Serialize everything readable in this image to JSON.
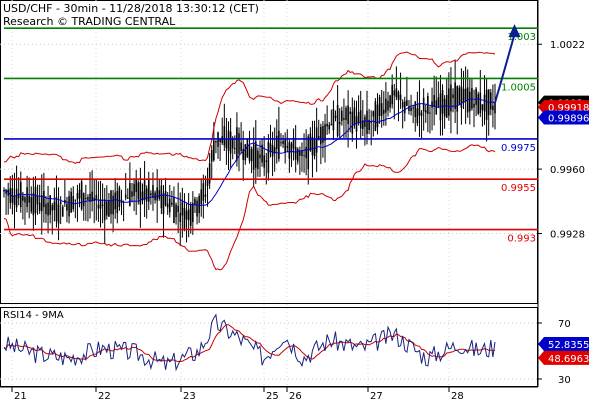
{
  "header": {
    "line1": "USD/CHF - 30min - 11/28/2018 13:30:12 (CET)",
    "line2": "Research © TRADING CENTRAL"
  },
  "sub_title": "RSI14 - 9MA",
  "colors": {
    "bg": "#ffffff",
    "candles": "#000000",
    "bollinger": "#cc0000",
    "moving_average": "#0000cc",
    "arrow": "#0a1f8f",
    "resistance": "#008000",
    "pivot": "#0000cc",
    "support": "#e00000",
    "rsi": "#1a237e",
    "rsi_ma": "#cc0000",
    "price_badge": "#000000",
    "bb_badge": "#e00000",
    "ma_badge": "#0000cc"
  },
  "chart_data": [
    {
      "type": "candlestick",
      "title": "USD/CHF - 30min",
      "x_ticks": [
        "21",
        "22",
        "23",
        "25",
        "26",
        "27",
        "28"
      ],
      "y_ticks": [
        "1.0022",
        "0.9960",
        "0.9928"
      ],
      "ylim": [
        0.9895,
        1.004
      ],
      "levels": [
        {
          "label": "1.003",
          "value": 1.003,
          "kind": "resistance"
        },
        {
          "label": "1.0005",
          "value": 1.0005,
          "kind": "resistance"
        },
        {
          "label": "0.9975",
          "value": 0.9975,
          "kind": "pivot"
        },
        {
          "label": "0.9955",
          "value": 0.9955,
          "kind": "support"
        },
        {
          "label": "0.993",
          "value": 0.993,
          "kind": "support"
        }
      ],
      "badges": [
        {
          "label": "0.9993",
          "value": 0.9993,
          "kind": "price"
        },
        {
          "label": "0.99918",
          "value": 0.99918,
          "kind": "bb"
        },
        {
          "label": "0.99896",
          "value": 0.99896,
          "kind": "ma"
        }
      ],
      "close_path": [
        {
          "day": 0.0,
          "price": 0.9949
        },
        {
          "day": 0.4,
          "price": 0.9945
        },
        {
          "day": 0.8,
          "price": 0.994
        },
        {
          "day": 1.2,
          "price": 0.9947
        },
        {
          "day": 1.6,
          "price": 0.9941
        },
        {
          "day": 2.0,
          "price": 0.9949
        },
        {
          "day": 2.4,
          "price": 0.9946
        },
        {
          "day": 2.8,
          "price": 0.9937
        },
        {
          "day": 3.1,
          "price": 0.9948
        },
        {
          "day": 3.25,
          "price": 0.9975
        },
        {
          "day": 3.6,
          "price": 0.9972
        },
        {
          "day": 4.0,
          "price": 0.9964
        },
        {
          "day": 4.3,
          "price": 0.9975
        },
        {
          "day": 4.6,
          "price": 0.9965
        },
        {
          "day": 5.0,
          "price": 0.9983
        },
        {
          "day": 5.3,
          "price": 0.9986
        },
        {
          "day": 5.6,
          "price": 0.9982
        },
        {
          "day": 6.0,
          "price": 0.9997
        },
        {
          "day": 6.3,
          "price": 0.9988
        },
        {
          "day": 6.7,
          "price": 0.9992
        },
        {
          "day": 7.0,
          "price": 0.9996
        },
        {
          "day": 7.3,
          "price": 0.9993
        },
        {
          "day": 7.55,
          "price": 0.9991
        }
      ],
      "projection": [
        {
          "day": 7.55,
          "price": 0.9993
        },
        {
          "day": 7.85,
          "price": 1.003
        }
      ]
    },
    {
      "type": "line",
      "title": "RSI14 - 9MA",
      "y_ticks": [
        "70",
        "30"
      ],
      "ylim": [
        25,
        80
      ],
      "series": [
        {
          "name": "RSI14",
          "kind": "rsi"
        },
        {
          "name": "9MA",
          "kind": "ma"
        }
      ],
      "badges": [
        {
          "label": "52.8355",
          "value": 52.8355,
          "kind": "rsi"
        },
        {
          "label": "48.6963",
          "value": 48.6963,
          "kind": "ma"
        }
      ],
      "rsi_path": [
        {
          "day": 0.0,
          "value": 55
        },
        {
          "day": 0.5,
          "value": 48
        },
        {
          "day": 1.0,
          "value": 45
        },
        {
          "day": 1.5,
          "value": 52
        },
        {
          "day": 2.0,
          "value": 49
        },
        {
          "day": 2.5,
          "value": 40
        },
        {
          "day": 3.0,
          "value": 50
        },
        {
          "day": 3.25,
          "value": 70
        },
        {
          "day": 3.6,
          "value": 60
        },
        {
          "day": 4.0,
          "value": 45
        },
        {
          "day": 4.3,
          "value": 62
        },
        {
          "day": 4.6,
          "value": 45
        },
        {
          "day": 5.0,
          "value": 58
        },
        {
          "day": 5.5,
          "value": 52
        },
        {
          "day": 6.0,
          "value": 62
        },
        {
          "day": 6.5,
          "value": 45
        },
        {
          "day": 7.0,
          "value": 55
        },
        {
          "day": 7.3,
          "value": 50
        },
        {
          "day": 7.55,
          "value": 52.8
        }
      ]
    }
  ]
}
